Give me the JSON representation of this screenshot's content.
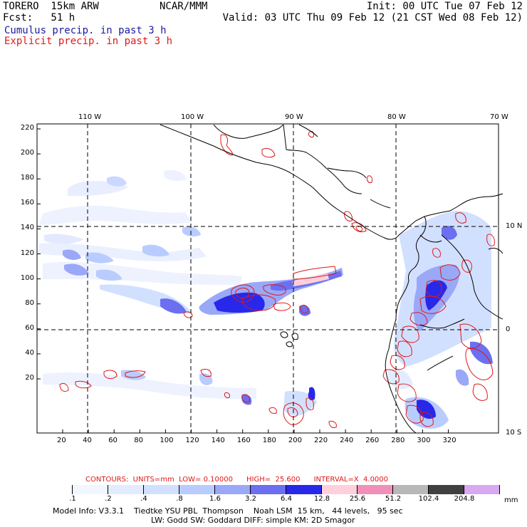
{
  "header": {
    "model": "TORERO  15km ARW",
    "center": "NCAR/MMM",
    "init": "Init: 00 UTC Tue 07 Feb 12",
    "fcst": "Fcst:   51 h",
    "valid": "Valid: 03 UTC Thu 09 Feb 12 (21 CST Wed 08 Feb 12)",
    "field_cumulus": "Cumulus precip. in past 3 h",
    "field_explicit": "Explicit precip. in past 3 h"
  },
  "colors": {
    "cumulus_label": "#1a1aa0",
    "explicit_label": "#e01818",
    "contour": "#e01818",
    "gridline": "#000000"
  },
  "map": {
    "lon_labels": [
      "110 W",
      "100 W",
      "90 W",
      "80 W",
      "70 W"
    ],
    "lat_labels": [
      "10 N",
      "0",
      "10 S"
    ],
    "x_ticks": [
      "20",
      "40",
      "60",
      "80",
      "100",
      "120",
      "140",
      "160",
      "180",
      "200",
      "220",
      "240",
      "260",
      "280",
      "300",
      "320"
    ],
    "y_ticks": [
      "220",
      "200",
      "180",
      "160",
      "140",
      "120",
      "100",
      "80",
      "60",
      "40",
      "20"
    ]
  },
  "contour_info": "CONTOURS:  UNITS=mm  LOW= 0.10000      HIGH=  25.600      INTERVAL=X  4.0000",
  "colorbar": {
    "unit": "mm",
    "labels": [
      ".1",
      ".2",
      ".4",
      ".8",
      "1.6",
      "3.2",
      "6.4",
      "12.8",
      "25.6",
      "51.2",
      "102.4",
      "204.8"
    ],
    "colors": [
      "#ffffff",
      "#f2f6ff",
      "#e3ecff",
      "#d2e0ff",
      "#b9ccff",
      "#9aa8f8",
      "#6b6ff0",
      "#2828ea",
      "#ffd0dc",
      "#f090b8",
      "#b8b8b8",
      "#404040",
      "#d8a8f0"
    ]
  },
  "footer": {
    "line1": "Model Info: V3.3.1    Tiedtke YSU PBL  Thompson    Noah LSM  15 km,   44 levels,   95 sec",
    "line2": "LW: Godd SW: Goddard DIFF: simple KM: 2D Smagor"
  }
}
